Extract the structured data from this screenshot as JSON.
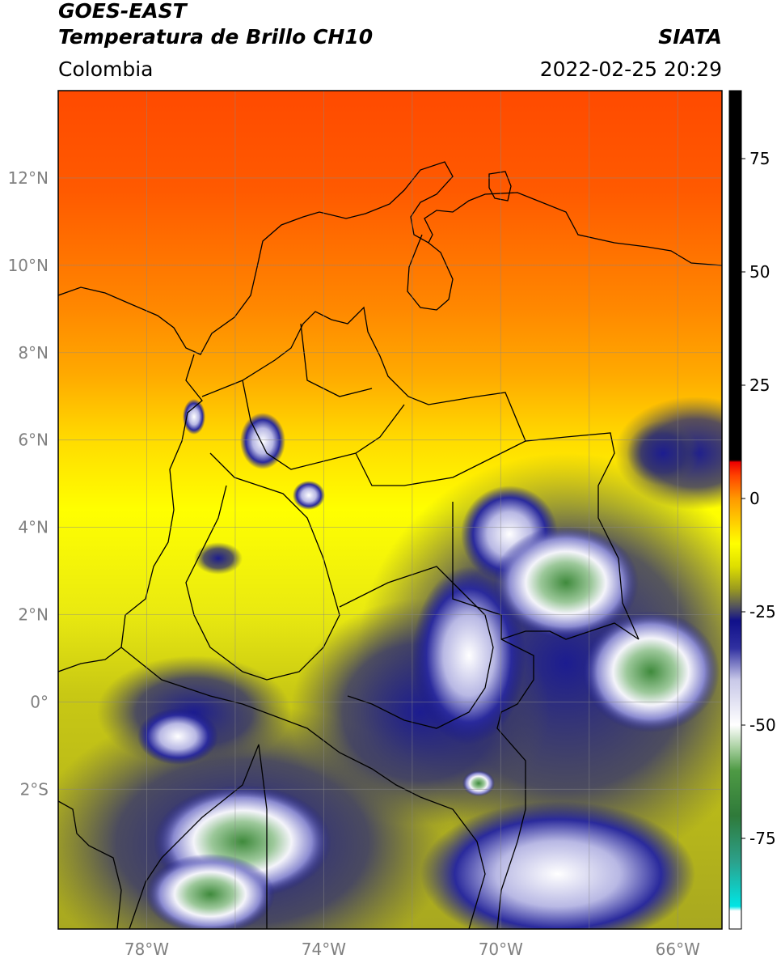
{
  "header": {
    "satellite": "GOES-EAST",
    "product": "Temperatura de Brillo CH10",
    "region": "Colombia",
    "source": "SIATA",
    "datetime": "2022-02-25 20:29"
  },
  "map": {
    "lon_range": [
      -80.0,
      -65.0
    ],
    "lat_range": [
      -5.2,
      14.0
    ],
    "lon_ticks": [
      {
        "value": -78,
        "label": "78°W"
      },
      {
        "value": -74,
        "label": "74°W"
      },
      {
        "value": -70,
        "label": "70°W"
      },
      {
        "value": -66,
        "label": "66°W"
      }
    ],
    "lat_ticks": [
      {
        "value": 12,
        "label": "12°N"
      },
      {
        "value": 10,
        "label": "10°N"
      },
      {
        "value": 8,
        "label": "8°N"
      },
      {
        "value": 6,
        "label": "6°N"
      },
      {
        "value": 4,
        "label": "4°N"
      },
      {
        "value": 2,
        "label": "2°N"
      },
      {
        "value": 0,
        "label": "0°"
      },
      {
        "value": -2,
        "label": "2°S"
      }
    ],
    "gridlines": true
  },
  "colorbar": {
    "range": [
      -95,
      90
    ],
    "ticks": [
      {
        "value": 75,
        "label": "75"
      },
      {
        "value": 50,
        "label": "50"
      },
      {
        "value": 25,
        "label": "25"
      },
      {
        "value": 0,
        "label": "0"
      },
      {
        "value": -25,
        "label": "-25"
      },
      {
        "value": -50,
        "label": "-50"
      },
      {
        "value": -75,
        "label": "-75"
      }
    ],
    "stops": [
      {
        "value": -95,
        "color": "#ffffff"
      },
      {
        "value": -91,
        "color": "#ffffff"
      },
      {
        "value": -90,
        "color": "#00e5e5"
      },
      {
        "value": -80,
        "color": "#2ca08a"
      },
      {
        "value": -70,
        "color": "#2f7a3a"
      },
      {
        "value": -60,
        "color": "#4e9a44"
      },
      {
        "value": -55,
        "color": "#a8d0a0"
      },
      {
        "value": -50,
        "color": "#ffffff"
      },
      {
        "value": -40,
        "color": "#c8c8e8"
      },
      {
        "value": -33,
        "color": "#3030a0"
      },
      {
        "value": -27,
        "color": "#10108a"
      },
      {
        "value": -24,
        "color": "#505060"
      },
      {
        "value": -20,
        "color": "#9a9a20"
      },
      {
        "value": -15,
        "color": "#dede00"
      },
      {
        "value": -10,
        "color": "#ffff00"
      },
      {
        "value": -5,
        "color": "#ffcc00"
      },
      {
        "value": 0,
        "color": "#ff9900"
      },
      {
        "value": 5,
        "color": "#ff4400"
      },
      {
        "value": 8,
        "color": "#ee0000"
      },
      {
        "value": 8.5,
        "color": "#000000"
      },
      {
        "value": 90,
        "color": "#000000"
      }
    ]
  }
}
